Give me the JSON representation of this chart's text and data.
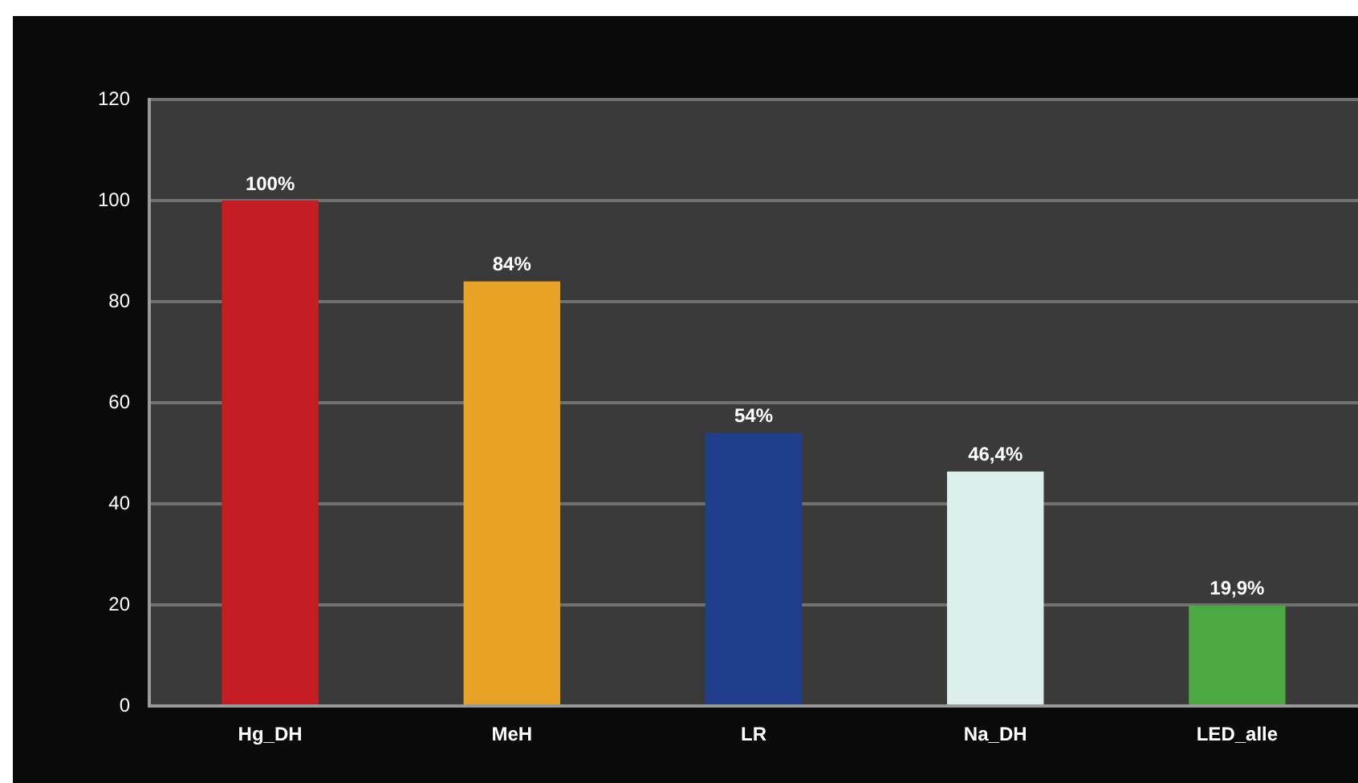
{
  "chart_data": {
    "type": "bar",
    "categories": [
      "Hg_DH",
      "MeH",
      "LR",
      "Na_DH",
      "LED_alle"
    ],
    "values": [
      100,
      84,
      54,
      46.4,
      19.9
    ],
    "colors": [
      "#c41e24",
      "#e8a326",
      "#1f3e8c",
      "#dcefec",
      "#4ca843"
    ],
    "value_labels": [
      "100%",
      "84%",
      "54%",
      "46,4%",
      "19,9%"
    ],
    "ylim": [
      0,
      120
    ],
    "yticks": [
      0,
      20,
      40,
      60,
      80,
      100,
      120
    ],
    "grid": "y",
    "legend": false
  }
}
